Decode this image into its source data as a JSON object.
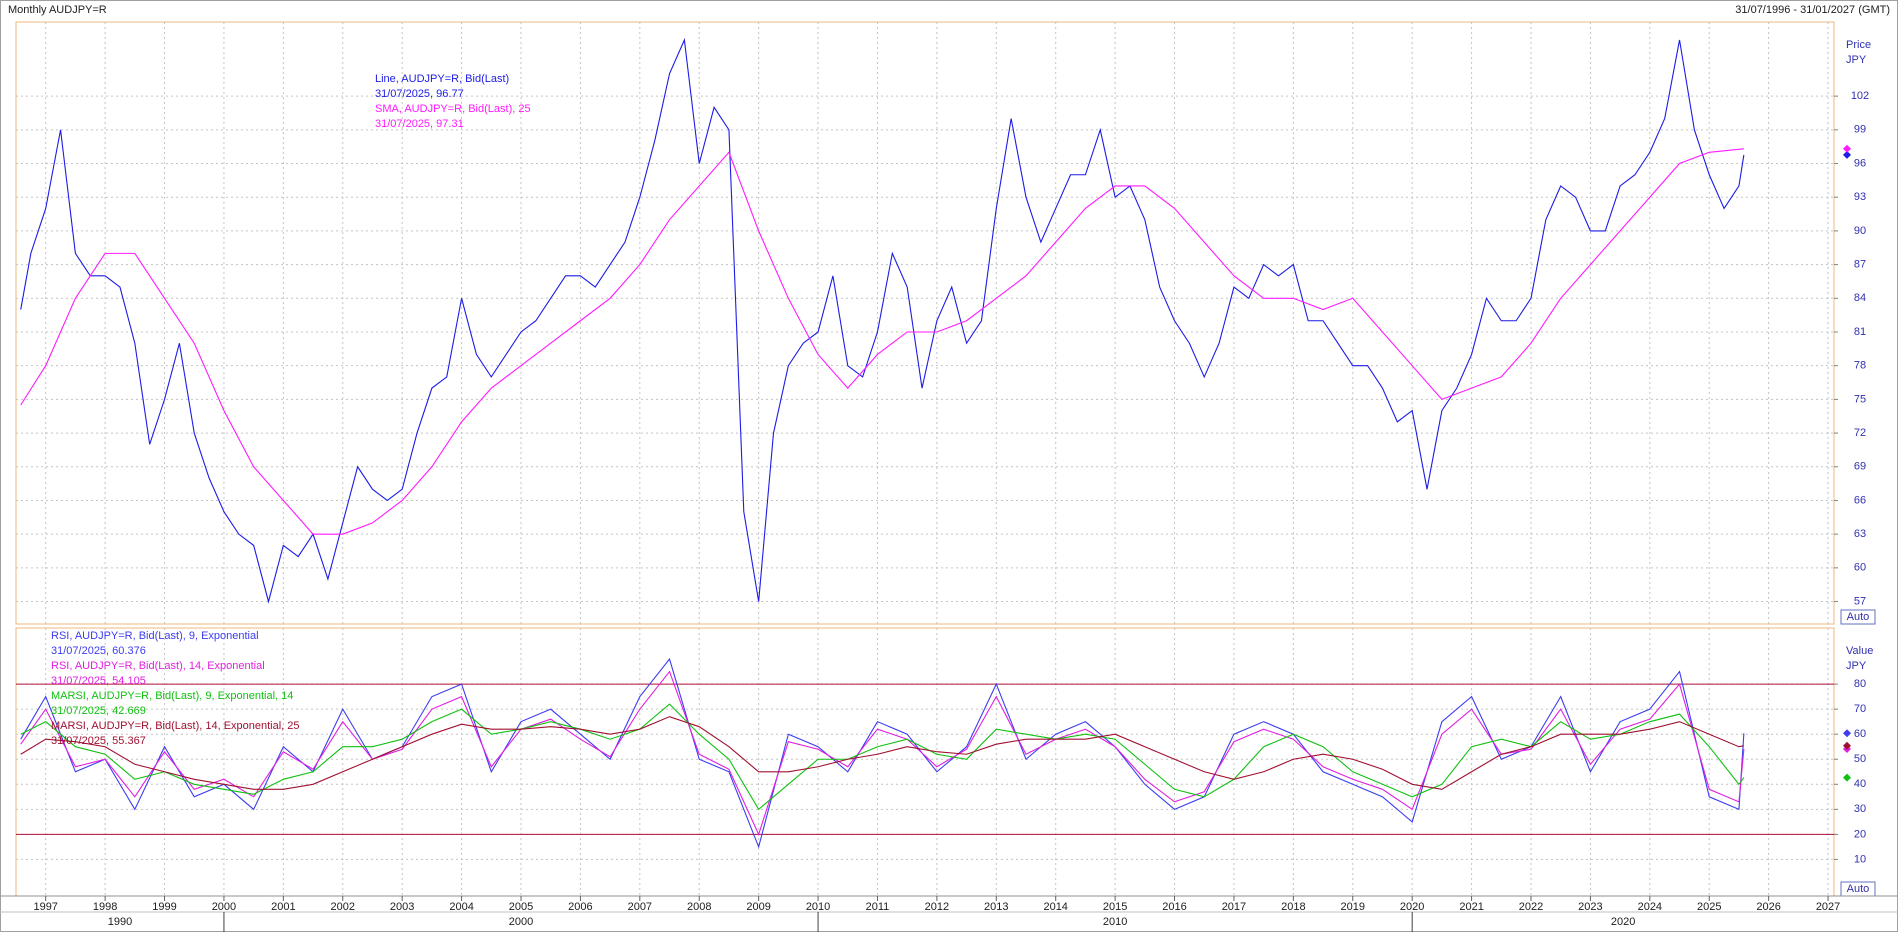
{
  "header": {
    "title": "Monthly AUDJPY=R",
    "date_range": "31/07/1996 - 31/01/2027 (GMT)"
  },
  "chart_data": [
    {
      "type": "line",
      "y_label": "Price",
      "y_unit": "JPY",
      "scale_mode": "Auto",
      "xlim": [
        1996.5,
        2027.1
      ],
      "xticks": [
        1997,
        1998,
        1999,
        2000,
        2001,
        2002,
        2003,
        2004,
        2005,
        2006,
        2007,
        2008,
        2009,
        2010,
        2011,
        2012,
        2013,
        2014,
        2015,
        2016,
        2017,
        2018,
        2019,
        2020,
        2021,
        2022,
        2023,
        2024,
        2025,
        2026,
        2027
      ],
      "ylim": [
        55,
        108.6
      ],
      "yticks": [
        57,
        60,
        63,
        66,
        69,
        72,
        75,
        78,
        81,
        84,
        87,
        90,
        93,
        96,
        99,
        102
      ],
      "grid": true,
      "series": [
        {
          "name": "Line, AUDJPY=R, Bid(Last)",
          "last_label": "31/07/2025, 96.77",
          "color": "#1c1ce6",
          "x": [
            1996.58,
            1996.75,
            1997,
            1997.25,
            1997.5,
            1997.75,
            1998,
            1998.25,
            1998.5,
            1998.75,
            1999,
            1999.25,
            1999.5,
            1999.75,
            2000,
            2000.25,
            2000.5,
            2000.75,
            2001,
            2001.25,
            2001.5,
            2001.75,
            2002,
            2002.25,
            2002.5,
            2002.75,
            2003,
            2003.25,
            2003.5,
            2003.75,
            2004,
            2004.25,
            2004.5,
            2004.75,
            2005,
            2005.25,
            2005.5,
            2005.75,
            2006,
            2006.25,
            2006.5,
            2006.75,
            2007,
            2007.25,
            2007.5,
            2007.75,
            2008,
            2008.25,
            2008.5,
            2008.75,
            2009,
            2009.25,
            2009.5,
            2009.75,
            2010,
            2010.25,
            2010.5,
            2010.75,
            2011,
            2011.25,
            2011.5,
            2011.75,
            2012,
            2012.25,
            2012.5,
            2012.75,
            2013,
            2013.25,
            2013.5,
            2013.75,
            2014,
            2014.25,
            2014.5,
            2014.75,
            2015,
            2015.25,
            2015.5,
            2015.75,
            2016,
            2016.25,
            2016.5,
            2016.75,
            2017,
            2017.25,
            2017.5,
            2017.75,
            2018,
            2018.25,
            2018.5,
            2018.75,
            2019,
            2019.25,
            2019.5,
            2019.75,
            2020,
            2020.25,
            2020.5,
            2020.75,
            2021,
            2021.25,
            2021.5,
            2021.75,
            2022,
            2022.25,
            2022.5,
            2022.75,
            2023,
            2023.25,
            2023.5,
            2023.75,
            2024,
            2024.25,
            2024.5,
            2024.75,
            2025,
            2025.25,
            2025.5,
            2025.583
          ],
          "values": [
            83,
            88,
            92,
            99,
            88,
            86,
            86,
            85,
            80,
            71,
            75,
            80,
            72,
            68,
            65,
            63,
            62,
            57,
            62,
            61,
            63,
            59,
            64,
            69,
            67,
            66,
            67,
            72,
            76,
            77,
            84,
            79,
            77,
            79,
            81,
            82,
            84,
            86,
            86,
            85,
            87,
            89,
            93,
            98,
            104,
            107,
            96,
            101,
            99,
            65,
            57,
            72,
            78,
            80,
            81,
            86,
            78,
            77,
            81,
            88,
            85,
            76,
            82,
            85,
            80,
            82,
            92,
            100,
            93,
            89,
            92,
            95,
            95,
            99,
            93,
            94,
            91,
            85,
            82,
            80,
            77,
            80,
            85,
            84,
            87,
            86,
            87,
            82,
            82,
            80,
            78,
            78,
            76,
            73,
            74,
            67,
            74,
            76,
            79,
            84,
            82,
            82,
            84,
            91,
            94,
            93,
            90,
            90,
            94,
            95,
            97,
            100,
            107,
            99,
            95,
            92,
            94,
            96.77
          ]
        },
        {
          "name": "SMA, AUDJPY=R, Bid(Last),  25",
          "last_label": "31/07/2025, 97.31",
          "color": "#ff1aff",
          "x": [
            1996.58,
            1997,
            1997.5,
            1998,
            1998.5,
            1999,
            1999.5,
            2000,
            2000.5,
            2001,
            2001.5,
            2002,
            2002.5,
            2003,
            2003.5,
            2004,
            2004.5,
            2005,
            2005.5,
            2006,
            2006.5,
            2007,
            2007.5,
            2008,
            2008.5,
            2009,
            2009.5,
            2010,
            2010.5,
            2011,
            2011.5,
            2012,
            2012.5,
            2013,
            2013.5,
            2014,
            2014.5,
            2015,
            2015.5,
            2016,
            2016.5,
            2017,
            2017.5,
            2018,
            2018.5,
            2019,
            2019.5,
            2020,
            2020.5,
            2021,
            2021.5,
            2022,
            2022.5,
            2023,
            2023.5,
            2024,
            2024.5,
            2025,
            2025.583
          ],
          "values": [
            74.5,
            78,
            84,
            88,
            88,
            84,
            80,
            74,
            69,
            66,
            63,
            63,
            64,
            66,
            69,
            73,
            76,
            78,
            80,
            82,
            84,
            87,
            91,
            94,
            97,
            90,
            84,
            79,
            76,
            79,
            81,
            81,
            82,
            84,
            86,
            89,
            92,
            94,
            94,
            92,
            89,
            86,
            84,
            84,
            83,
            84,
            81,
            78,
            75,
            76,
            77,
            80,
            84,
            87,
            90,
            93,
            96,
            97,
            97.31
          ]
        }
      ]
    },
    {
      "type": "line",
      "y_label": "Value",
      "y_unit": "JPY",
      "scale_mode": "Auto",
      "xlim": [
        1996.5,
        2027.1
      ],
      "xticks": [
        1997,
        1998,
        1999,
        2000,
        2001,
        2002,
        2003,
        2004,
        2005,
        2006,
        2007,
        2008,
        2009,
        2010,
        2011,
        2012,
        2013,
        2014,
        2015,
        2016,
        2017,
        2018,
        2019,
        2020,
        2021,
        2022,
        2023,
        2024,
        2025,
        2026,
        2027
      ],
      "decade_labels": [
        1990,
        2000,
        2010,
        2020
      ],
      "ylim": [
        -4.6,
        102.4
      ],
      "yticks": [
        10,
        20,
        30,
        40,
        50,
        60,
        70,
        80
      ],
      "grid": true,
      "levels": [
        20,
        80
      ],
      "level_color": "#b0103a",
      "x": [
        1996.58,
        1997,
        1997.5,
        1998,
        1998.5,
        1999,
        1999.5,
        2000,
        2000.5,
        2001,
        2001.5,
        2002,
        2002.5,
        2003,
        2003.5,
        2004,
        2004.5,
        2005,
        2005.5,
        2006,
        2006.5,
        2007,
        2007.5,
        2008,
        2008.5,
        2009,
        2009.5,
        2010,
        2010.5,
        2011,
        2011.5,
        2012,
        2012.5,
        2013,
        2013.5,
        2014,
        2014.5,
        2015,
        2015.5,
        2016,
        2016.5,
        2017,
        2017.5,
        2018,
        2018.5,
        2019,
        2019.5,
        2020,
        2020.5,
        2021,
        2021.5,
        2022,
        2022.5,
        2023,
        2023.5,
        2024,
        2024.5,
        2025,
        2025.5,
        2025.583
      ],
      "series": [
        {
          "name": "RSI, AUDJPY=R, Bid(Last),  9, Exponential",
          "last_label": "31/07/2025, 60.376",
          "color": "#3c3cf0",
          "values": [
            58,
            75,
            45,
            50,
            30,
            55,
            35,
            40,
            30,
            55,
            45,
            70,
            50,
            55,
            75,
            80,
            45,
            65,
            70,
            60,
            50,
            75,
            90,
            50,
            45,
            15,
            60,
            55,
            45,
            65,
            60,
            45,
            55,
            80,
            50,
            60,
            65,
            55,
            40,
            30,
            35,
            60,
            65,
            60,
            45,
            40,
            35,
            25,
            65,
            75,
            50,
            55,
            75,
            45,
            65,
            70,
            85,
            35,
            30,
            60.376
          ]
        },
        {
          "name": "RSI, AUDJPY=R, Bid(Last),  14, Exponential",
          "last_label": "31/07/2025, 54.105",
          "color": "#e020e0",
          "values": [
            56,
            70,
            47,
            50,
            35,
            53,
            38,
            42,
            35,
            53,
            46,
            65,
            50,
            54,
            70,
            75,
            47,
            62,
            66,
            58,
            51,
            70,
            85,
            52,
            46,
            20,
            57,
            54,
            47,
            62,
            58,
            47,
            54,
            75,
            52,
            58,
            62,
            55,
            42,
            33,
            37,
            57,
            62,
            58,
            47,
            42,
            38,
            30,
            60,
            70,
            52,
            54,
            70,
            48,
            62,
            66,
            80,
            38,
            33,
            54.105
          ]
        },
        {
          "name": "MARSI, AUDJPY=R, Bid(Last),  9, Exponential, 14",
          "last_label": "31/07/2025, 42.669",
          "color": "#10c010",
          "values": [
            60,
            65,
            55,
            52,
            42,
            45,
            40,
            38,
            36,
            42,
            45,
            55,
            55,
            58,
            65,
            70,
            60,
            62,
            65,
            62,
            58,
            62,
            72,
            60,
            50,
            30,
            40,
            50,
            50,
            55,
            58,
            52,
            50,
            62,
            60,
            58,
            60,
            58,
            48,
            38,
            35,
            42,
            55,
            60,
            55,
            45,
            40,
            35,
            40,
            55,
            58,
            55,
            65,
            58,
            60,
            65,
            68,
            55,
            40,
            42.669
          ]
        },
        {
          "name": "MARSI, AUDJPY=R, Bid(Last),  14, Exponential, 25",
          "last_label": "31/07/2025, 55.367",
          "color": "#a01030",
          "values": [
            52,
            58,
            57,
            55,
            48,
            45,
            42,
            40,
            38,
            38,
            40,
            45,
            50,
            55,
            60,
            64,
            62,
            62,
            63,
            62,
            60,
            62,
            67,
            63,
            55,
            45,
            45,
            47,
            50,
            52,
            55,
            53,
            52,
            56,
            58,
            58,
            58,
            60,
            55,
            50,
            45,
            42,
            45,
            50,
            52,
            50,
            46,
            40,
            38,
            45,
            52,
            55,
            60,
            60,
            60,
            62,
            65,
            60,
            55,
            55.367
          ]
        }
      ]
    }
  ]
}
